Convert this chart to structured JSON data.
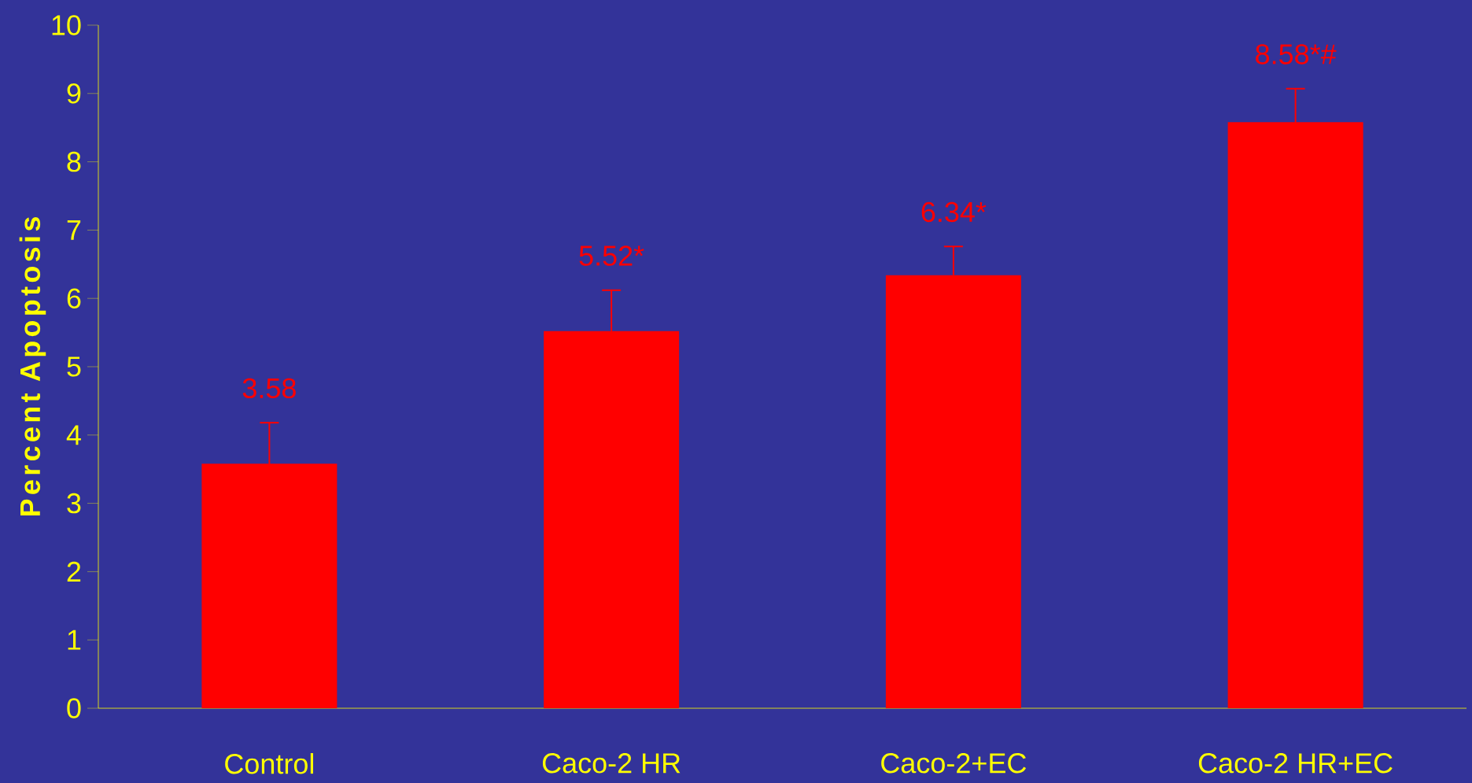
{
  "chart_data": {
    "type": "bar",
    "ylabel": "Percent Apoptosis",
    "categories": [
      "Control",
      "Caco-2 HR",
      "Caco-2+EC",
      "Caco-2 HR+EC"
    ],
    "values": [
      3.58,
      5.52,
      6.34,
      8.58
    ],
    "errors": [
      0.6,
      0.6,
      0.42,
      0.49
    ],
    "value_labels": [
      "3.58",
      "5.52*",
      "6.34*",
      "8.58*#"
    ],
    "color": "#ff0000",
    "ylim": [
      0,
      10
    ],
    "yticks": [
      0,
      1,
      2,
      3,
      4,
      5,
      6,
      7,
      8,
      9,
      10
    ]
  }
}
